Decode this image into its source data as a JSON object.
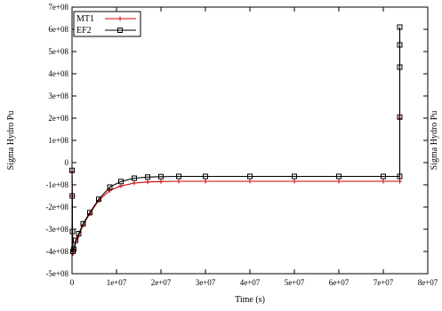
{
  "colors": {
    "MT1": "#cc0000",
    "EF2": "#000000",
    "axis": "#000000",
    "background": "#ffffff"
  },
  "chart_data": {
    "type": "line",
    "title": "",
    "xlabel": "Time (s)",
    "ylabel": "Sigma Hydro Pu",
    "clipped_label": "Sigma Hydro Pu",
    "xlim": [
      0,
      80000000
    ],
    "ylim": [
      -500000000,
      700000000
    ],
    "grid": false,
    "legend_position": "top-left",
    "x_ticks": [
      {
        "value": 0,
        "label": "0"
      },
      {
        "value": 10000000,
        "label": "1e+07"
      },
      {
        "value": 20000000,
        "label": "2e+07"
      },
      {
        "value": 30000000,
        "label": "3e+07"
      },
      {
        "value": 40000000,
        "label": "4e+07"
      },
      {
        "value": 50000000,
        "label": "5e+07"
      },
      {
        "value": 60000000,
        "label": "6e+07"
      },
      {
        "value": 70000000,
        "label": "7e+07"
      },
      {
        "value": 80000000,
        "label": "8e+07"
      }
    ],
    "y_ticks": [
      {
        "value": 700000000,
        "label": "7e+08"
      },
      {
        "value": 600000000,
        "label": "6e+08"
      },
      {
        "value": 500000000,
        "label": "5e+08"
      },
      {
        "value": 400000000,
        "label": "4e+08"
      },
      {
        "value": 300000000,
        "label": "3e+08"
      },
      {
        "value": 200000000,
        "label": "2e+08"
      },
      {
        "value": 100000000,
        "label": "1e+08"
      },
      {
        "value": 0,
        "label": "0"
      },
      {
        "value": -100000000,
        "label": "-1e+08"
      },
      {
        "value": -200000000,
        "label": "-2e+08"
      },
      {
        "value": -300000000,
        "label": "-3e+08"
      },
      {
        "value": -400000000,
        "label": "-4e+08"
      },
      {
        "value": -500000000,
        "label": "-5e+08"
      }
    ],
    "series": [
      {
        "name": "MT1",
        "color": "#cc0000",
        "marker": "plus",
        "x": [
          0,
          50000,
          100000,
          200000,
          400000,
          800000,
          1500000,
          2500000,
          4000000,
          6000000,
          8500000,
          11000000,
          14000000,
          17000000,
          20000000,
          24000000,
          30000000,
          40000000,
          50000000,
          60000000,
          70000000,
          73700000,
          73700000,
          73700000,
          73700000,
          73700000
        ],
        "y": [
          -40000000,
          -150000000,
          -300000000,
          -410000000,
          -400000000,
          -360000000,
          -330000000,
          -280000000,
          -230000000,
          -170000000,
          -125000000,
          -105000000,
          -92000000,
          -87000000,
          -85000000,
          -84000000,
          -84000000,
          -84000000,
          -84000000,
          -84000000,
          -84000000,
          -84000000,
          200000000,
          420000000,
          520000000,
          600000000
        ]
      },
      {
        "name": "EF2",
        "color": "#000000",
        "marker": "square",
        "x": [
          0,
          50000,
          100000,
          200000,
          400000,
          800000,
          1500000,
          2500000,
          4000000,
          6000000,
          8500000,
          11000000,
          14000000,
          17000000,
          20000000,
          24000000,
          30000000,
          40000000,
          50000000,
          60000000,
          70000000,
          73700000,
          73700000,
          73700000,
          73700000,
          73700000
        ],
        "y": [
          -35000000,
          -150000000,
          -310000000,
          -400000000,
          -390000000,
          -350000000,
          -320000000,
          -275000000,
          -225000000,
          -165000000,
          -110000000,
          -85000000,
          -70000000,
          -65000000,
          -63000000,
          -62000000,
          -62000000,
          -62000000,
          -62000000,
          -62000000,
          -62000000,
          -62000000,
          205000000,
          430000000,
          530000000,
          610000000
        ]
      }
    ]
  }
}
